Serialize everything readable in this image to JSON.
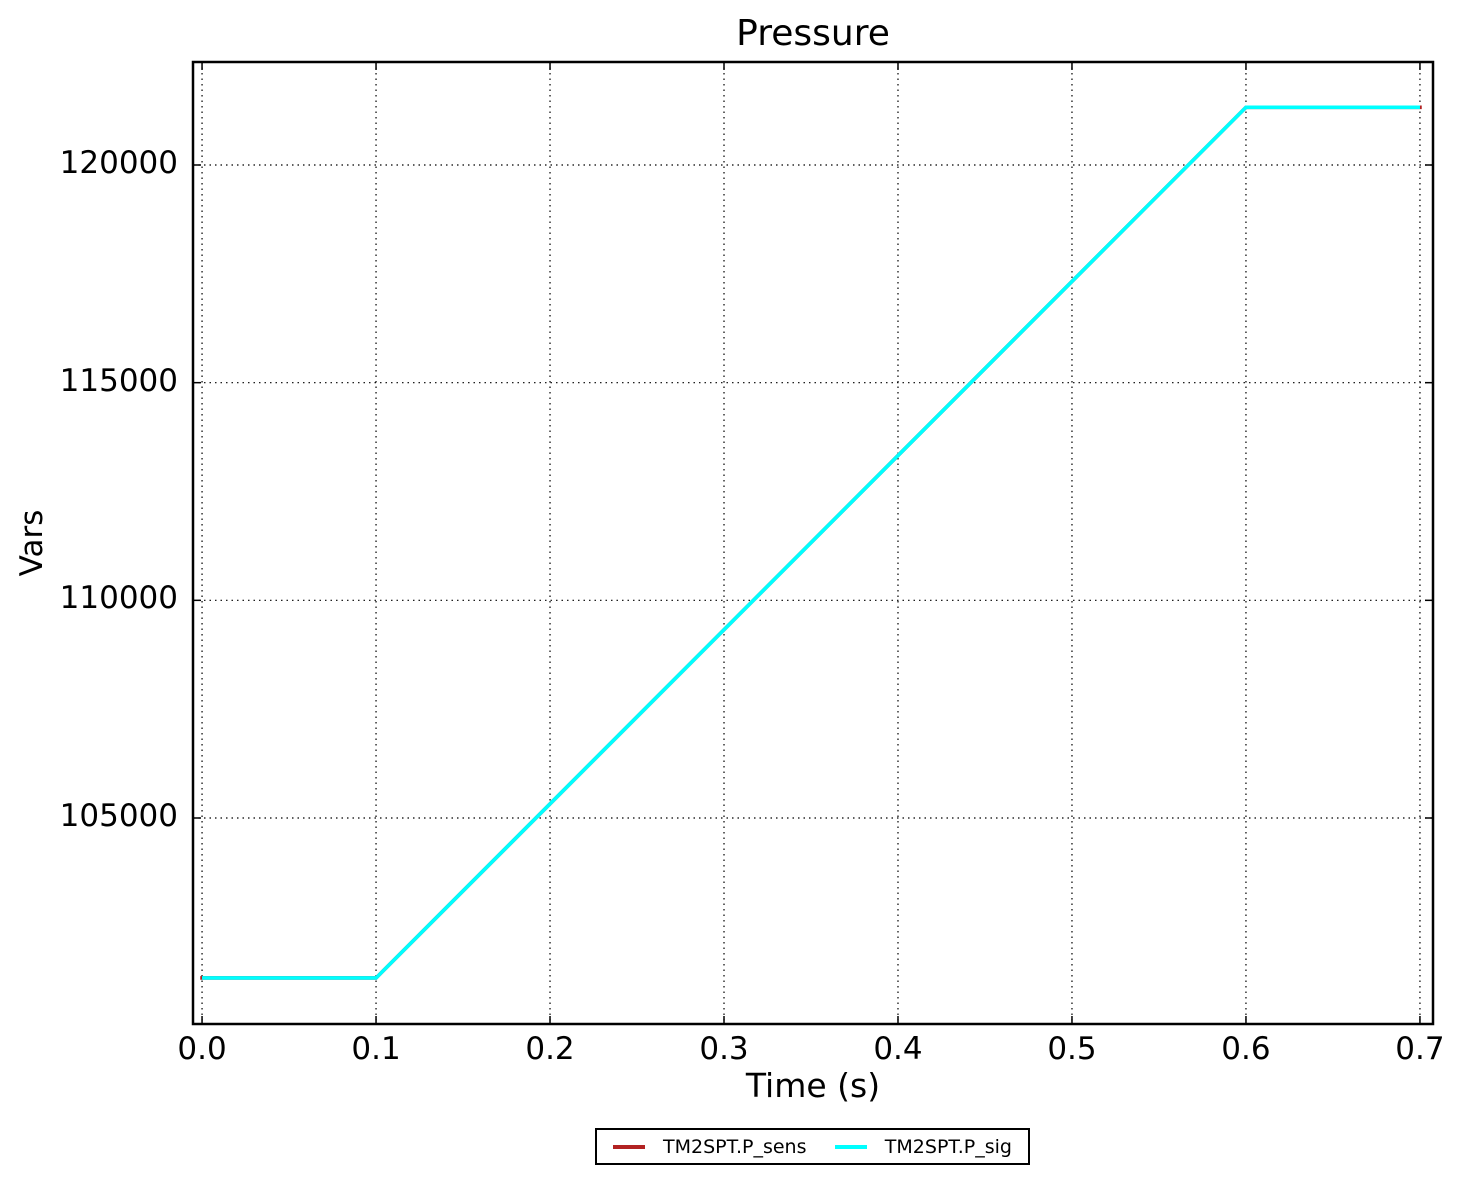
{
  "chart_data": {
    "type": "line",
    "title": "Pressure",
    "xlabel": "Time (s)",
    "ylabel": "Vars",
    "xlim": [
      -0.0052,
      0.7075
    ],
    "ylim": [
      100268,
      122366
    ],
    "grid": true,
    "grid_linestyle": "dotted",
    "grid_color": "#000000",
    "legend_position": "bottom-center-outside",
    "xticks": {
      "values": [
        0.0,
        0.1,
        0.2,
        0.3,
        0.4,
        0.5,
        0.6,
        0.7
      ],
      "labels": [
        "0.0",
        "0.1",
        "0.2",
        "0.3",
        "0.4",
        "0.5",
        "0.6",
        "0.7"
      ]
    },
    "yticks": {
      "values": [
        105000,
        110000,
        115000,
        120000
      ],
      "labels": [
        "105000",
        "110000",
        "115000",
        "120000"
      ]
    },
    "series": [
      {
        "name": "TM2SPT.P_sens",
        "color": "#b22222",
        "x": [
          0.0,
          0.1,
          0.6,
          0.7
        ],
        "y": [
          101325,
          101325,
          121325,
          121325
        ]
      },
      {
        "name": "TM2SPT.P_sig",
        "color": "#00ffff",
        "x": [
          0.0,
          0.1,
          0.6,
          0.7
        ],
        "y": [
          101325,
          101325,
          121325,
          121325
        ]
      }
    ]
  }
}
